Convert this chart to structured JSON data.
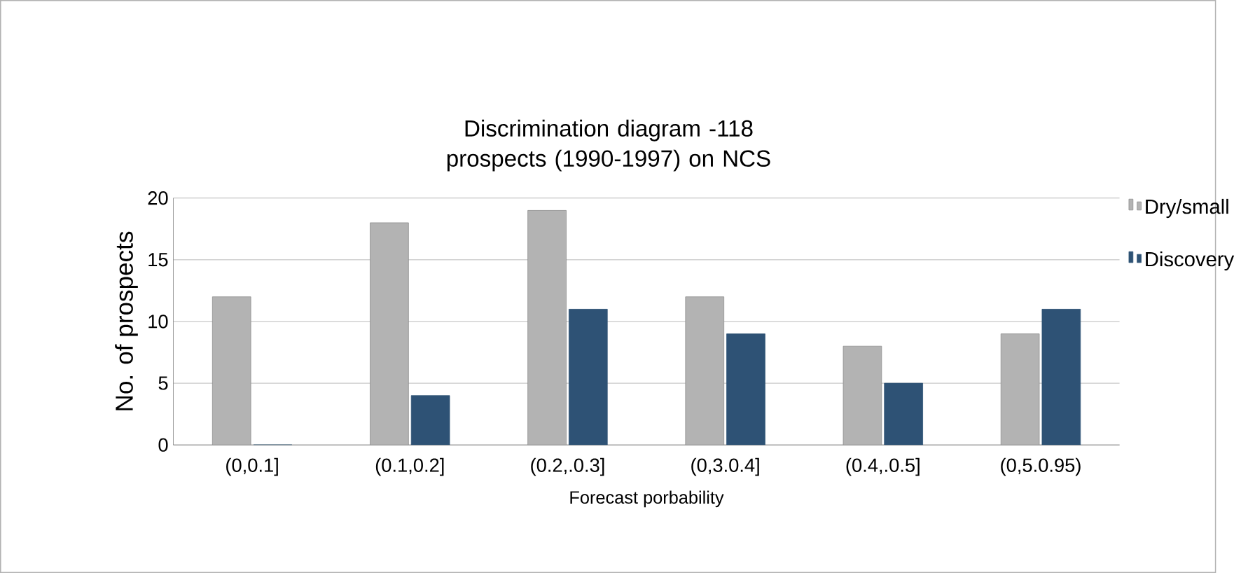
{
  "chart_data": {
    "type": "bar",
    "title": "Discrimination diagram -118 prospects (1990-1997) on NCS",
    "xlabel": "Forecast porbability",
    "ylabel": "No. of prospects",
    "categories": [
      "(0,0.1]",
      "(0.1,0.2]",
      "(0.2,.0.3]",
      "(0,3.0.4]",
      "(0.4,.0.5]",
      "(0,5.0.95)"
    ],
    "series": [
      {
        "name": "Dry/small",
        "color": "#b3b3b3",
        "values": [
          12,
          18,
          19,
          12,
          8,
          9
        ]
      },
      {
        "name": "Discovery",
        "color": "#2e5275",
        "values": [
          0,
          4,
          11,
          9,
          5,
          11
        ]
      }
    ],
    "ylim": [
      0,
      20
    ],
    "yticks": [
      0,
      5,
      10,
      15,
      20
    ],
    "grid": "y",
    "legend": "right"
  }
}
